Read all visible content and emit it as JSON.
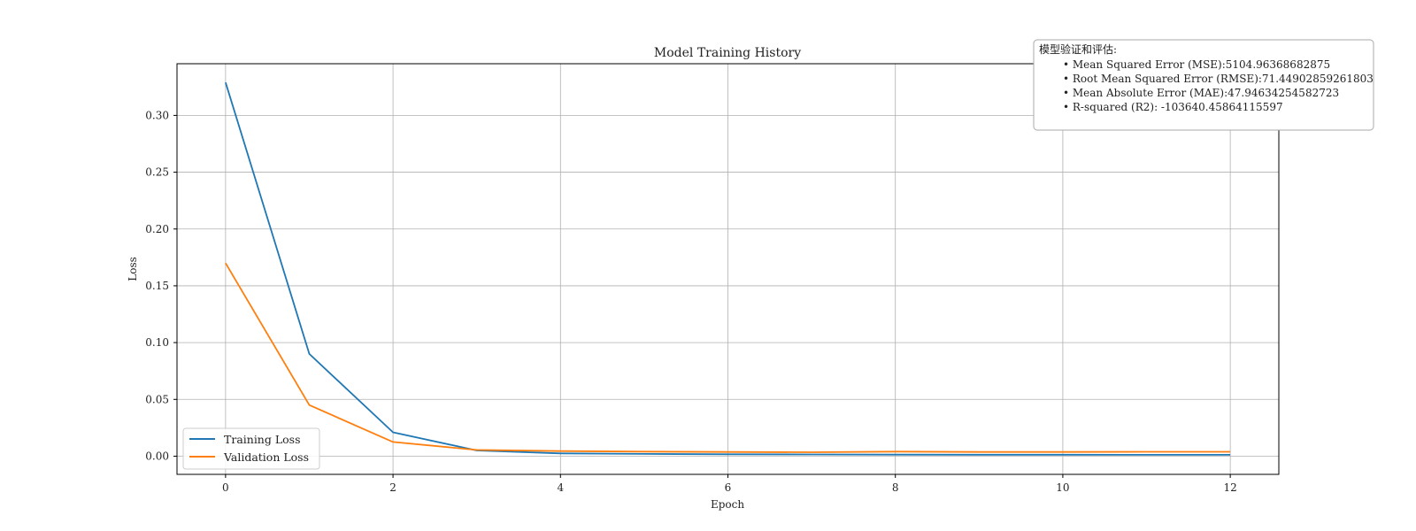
{
  "chart_data": {
    "type": "line",
    "title": "Model Training History",
    "xlabel": "Epoch",
    "ylabel": "Loss",
    "xlim": [
      -0.58,
      12.58
    ],
    "ylim": [
      -0.016,
      0.3455
    ],
    "xticks": [
      0,
      2,
      4,
      6,
      8,
      10,
      12
    ],
    "xtick_labels": [
      "0",
      "2",
      "4",
      "6",
      "8",
      "10",
      "12"
    ],
    "yticks": [
      0.0,
      0.05,
      0.1,
      0.15,
      0.2,
      0.25,
      0.3
    ],
    "ytick_labels": [
      "0.00",
      "0.05",
      "0.10",
      "0.15",
      "0.20",
      "0.25",
      "0.30"
    ],
    "grid": true,
    "legend_position": "lower-left",
    "x": [
      0,
      1,
      2,
      3,
      4,
      5,
      6,
      7,
      8,
      9,
      10,
      11,
      12
    ],
    "series": [
      {
        "name": "Training Loss",
        "color": "#1f77b4",
        "values": [
          0.329,
          0.09,
          0.021,
          0.005,
          0.0025,
          0.002,
          0.0017,
          0.0015,
          0.0014,
          0.0013,
          0.0013,
          0.0012,
          0.0012
        ]
      },
      {
        "name": "Validation Loss",
        "color": "#ff7f0e",
        "values": [
          0.17,
          0.045,
          0.0125,
          0.0055,
          0.0045,
          0.004,
          0.0037,
          0.0035,
          0.004,
          0.0037,
          0.0037,
          0.0039,
          0.0039
        ]
      }
    ],
    "annotation": {
      "title": "模型验证和评估:",
      "lines": [
        "• Mean Squared Error (MSE):5104.96368682875",
        "• Root Mean Squared Error (RMSE):71.44902859261803",
        "• Mean Absolute Error (MAE):47.94634254582723",
        "• R-squared (R2): -103640.45864115597"
      ],
      "position": "top-right"
    }
  }
}
